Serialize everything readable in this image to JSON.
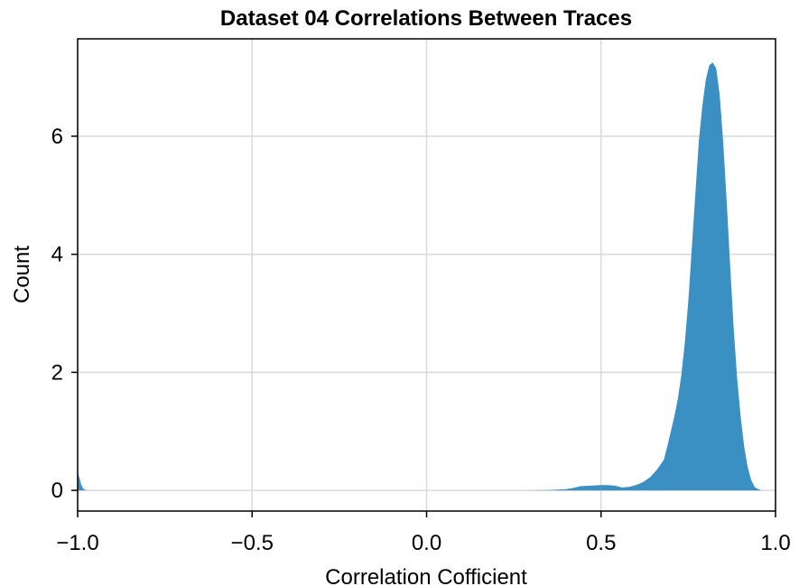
{
  "chart_data": {
    "type": "area",
    "title": "Dataset 04 Correlations Between Traces",
    "xlabel": "Correlation Cofficient",
    "ylabel": "Count",
    "xlim": [
      -1.0,
      1.0
    ],
    "ylim": [
      -0.35,
      7.65
    ],
    "grid": true,
    "fill_color": "#3a8fc3",
    "x_ticks": [
      {
        "value": -1.0,
        "label": "−1.0"
      },
      {
        "value": -0.5,
        "label": "−0.5"
      },
      {
        "value": 0.0,
        "label": "0.0"
      },
      {
        "value": 0.5,
        "label": "0.5"
      },
      {
        "value": 1.0,
        "label": "1.0"
      }
    ],
    "y_ticks": [
      {
        "value": 0,
        "label": "0"
      },
      {
        "value": 2,
        "label": "2"
      },
      {
        "value": 4,
        "label": "4"
      },
      {
        "value": 6,
        "label": "6"
      }
    ],
    "series": [
      {
        "x": [
          -1.0,
          -0.995,
          -0.99,
          -0.985,
          -0.98,
          -0.97,
          -0.9,
          -0.5,
          0.0,
          0.28,
          0.35,
          0.4,
          0.42,
          0.44,
          0.47,
          0.5,
          0.52,
          0.54,
          0.56,
          0.58,
          0.6,
          0.62,
          0.64,
          0.66,
          0.68,
          0.69,
          0.7,
          0.71,
          0.72,
          0.73,
          0.74,
          0.75,
          0.76,
          0.77,
          0.78,
          0.79,
          0.8,
          0.81,
          0.82,
          0.83,
          0.84,
          0.85,
          0.86,
          0.87,
          0.88,
          0.89,
          0.9,
          0.91,
          0.92,
          0.93,
          0.94,
          0.95,
          0.96,
          0.97,
          0.98,
          1.0
        ],
        "y": [
          0.3,
          0.22,
          0.1,
          0.04,
          0.01,
          0.0,
          0.0,
          0.0,
          0.0,
          0.0,
          0.005,
          0.02,
          0.04,
          0.07,
          0.08,
          0.09,
          0.09,
          0.08,
          0.05,
          0.06,
          0.09,
          0.14,
          0.22,
          0.35,
          0.52,
          0.75,
          1.0,
          1.25,
          1.55,
          1.95,
          2.5,
          3.2,
          4.1,
          5.0,
          5.9,
          6.5,
          6.95,
          7.2,
          7.25,
          7.15,
          6.7,
          5.9,
          4.9,
          3.8,
          2.75,
          1.9,
          1.25,
          0.75,
          0.4,
          0.18,
          0.06,
          0.02,
          0.0,
          0.0,
          0.0,
          0.0
        ]
      }
    ]
  }
}
